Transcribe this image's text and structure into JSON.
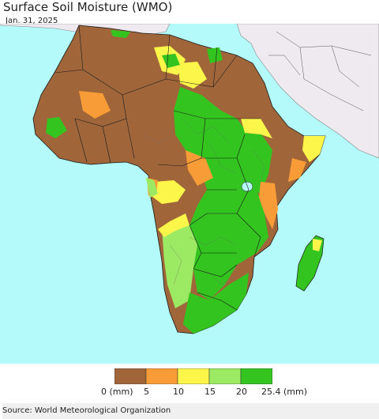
{
  "title": "Surface Soil Moisture (WMO)",
  "date": "Jan. 31, 2025",
  "legend": {
    "unit_label": "(mm)",
    "classes": [
      {
        "from": 0,
        "to": 5,
        "color": "#a0663a"
      },
      {
        "from": 5,
        "to": 10,
        "color": "#f79c36"
      },
      {
        "from": 10,
        "to": 15,
        "color": "#fdf64a"
      },
      {
        "from": 15,
        "to": 20,
        "color": "#9ce963"
      },
      {
        "from": 20,
        "to": 25.4,
        "color": "#33c41f"
      }
    ],
    "tick_labels": [
      "0 (mm)",
      "5",
      "10",
      "15",
      "20",
      "25.4 (mm)"
    ]
  },
  "colors": {
    "ocean": "#b4fafa",
    "other_land": "#eeeaf0",
    "borders": "#1a1a1a"
  },
  "source": "Source: World Meteorological Organization"
}
